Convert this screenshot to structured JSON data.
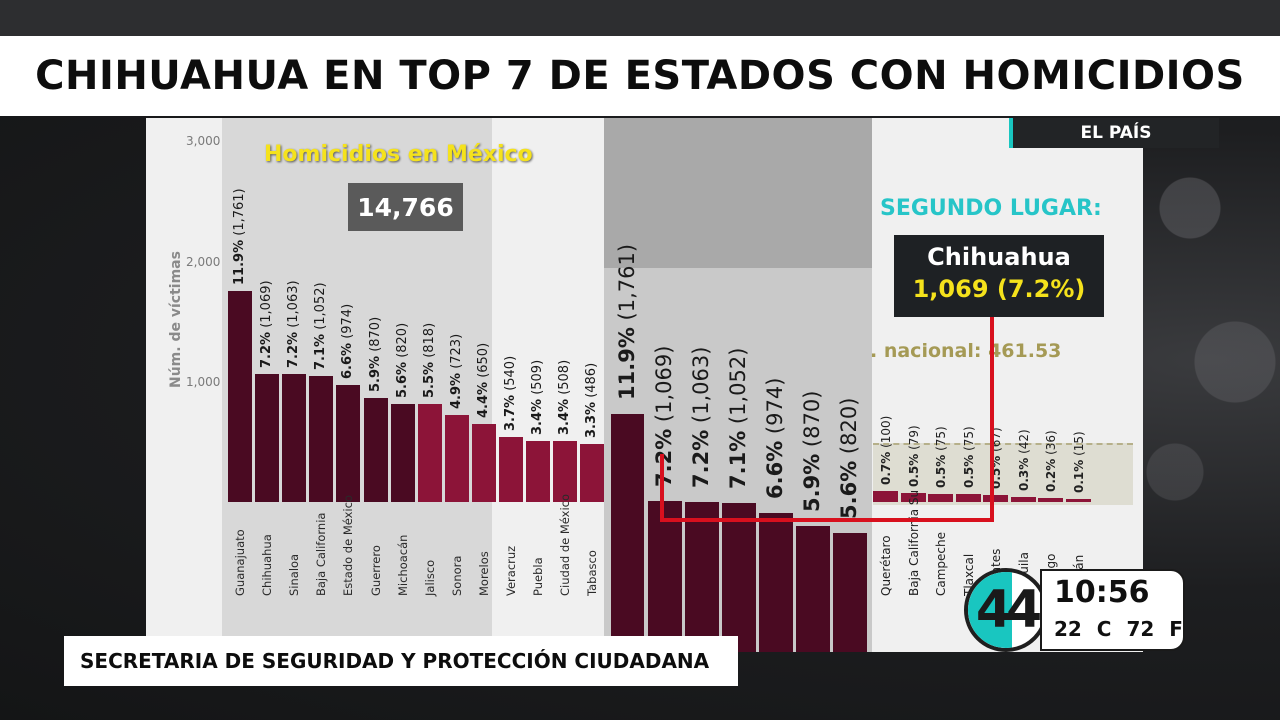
{
  "headline": "CHIHUAHUA EN TOP 7 DE ESTADOS CON HOMICIDIOS",
  "source": "EL PAÍS",
  "lower_third": "SECRETARIA DE SEGURIDAD Y PROTECCIÓN CIUDADANA",
  "clock": {
    "time": "10:56",
    "temp_c": "22 C",
    "temp_f": "72 F",
    "channel": "44"
  },
  "overlay": {
    "homicidios_title": "Homicidios en México",
    "total": "14,766",
    "segundo_lugar": "SEGUNDO LUGAR:",
    "chihuahua_name": "Chihuahua",
    "chihuahua_value": "1,069 (7.2%)",
    "nacional": ". nacional: 461.53"
  },
  "colors": {
    "dark_bar": "#4a0a22",
    "mid_bar": "#8c1438",
    "accent": "#19c6c0",
    "yellow": "#f5e21c",
    "red_line": "#d8101e"
  },
  "chart_data": {
    "type": "bar",
    "title": "Homicidios en México",
    "ylabel": "Núm. de víctimas",
    "yticks": [
      "3,000",
      "2,000",
      "1,000"
    ],
    "ylim": [
      0,
      3000
    ],
    "categories": [
      "Guanajuato",
      "Chihuahua",
      "Sinaloa",
      "Baja California",
      "Estado de México",
      "Guerrero",
      "Michoacán",
      "Jalisco",
      "Sonora",
      "Morelos",
      "Veracruz",
      "Puebla",
      "Ciudad de México",
      "Tabasco"
    ],
    "values": [
      1761,
      1069,
      1063,
      1052,
      974,
      870,
      820,
      818,
      723,
      650,
      540,
      509,
      508,
      486
    ],
    "pct_labels": [
      "11.9%",
      "7.2%",
      "7.2%",
      "7.1%",
      "6.6%",
      "5.9%",
      "5.6%",
      "5.5%",
      "4.9%",
      "4.4%",
      "3.7%",
      "3.4%",
      "3.4%",
      "3.3%"
    ],
    "count_labels": [
      "(1,761)",
      "(1,069)",
      "(1,063)",
      "(1,052)",
      "(974)",
      "(870)",
      "(820)",
      "(818)",
      "(723)",
      "(650)",
      "(540)",
      "(509)",
      "(508)",
      "(486)"
    ],
    "zoom": {
      "pct_labels": [
        "11.9%",
        "7.2%",
        "7.2%",
        "7.1%",
        "6.6%",
        "5.9%",
        "5.6%"
      ],
      "count_labels": [
        "(1,761)",
        "(1,069)",
        "(1,063)",
        "(1,052)",
        "(974)",
        "(870)",
        "(820)"
      ],
      "values": [
        1761,
        1069,
        1063,
        1052,
        974,
        870,
        820
      ]
    },
    "tail": {
      "categories": [
        "Querétaro",
        "Baja California Su",
        "Campeche",
        "Tlaxcala",
        "Aguascalientes",
        "Coahuila",
        "Durango",
        "Yucatán"
      ],
      "values": [
        100,
        79,
        75,
        75,
        67,
        42,
        36,
        15
      ],
      "pct_labels": [
        "0.7%",
        "0.5%",
        "0.5%",
        "0.5%",
        "0.5%",
        "0.3%",
        "0.2%",
        "0.1%"
      ],
      "count_labels": [
        "(100)",
        "(79)",
        "(75)",
        "(75)",
        "(67)",
        "(42)",
        "(36)",
        "(15)"
      ],
      "visible_cat_labels": [
        "Querétaro",
        "Baja California Su",
        "Campeche",
        "Tlaxcal",
        "alientes",
        "oahuila",
        "urango",
        "ucatán"
      ]
    }
  }
}
